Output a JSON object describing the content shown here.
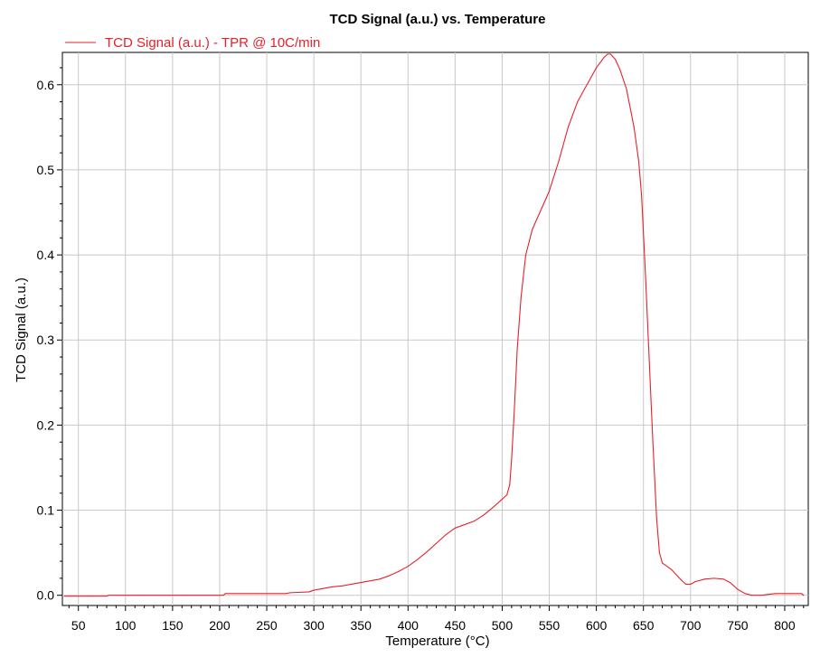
{
  "chart_data": {
    "type": "line",
    "title": "TCD Signal (a.u.) vs. Temperature",
    "xlabel": "Temperature (°C)",
    "ylabel": "TCD Signal (a.u.)",
    "xlim": [
      33,
      825
    ],
    "ylim": [
      -0.012,
      0.638
    ],
    "x_ticks": [
      50,
      100,
      150,
      200,
      250,
      300,
      350,
      400,
      450,
      500,
      550,
      600,
      650,
      700,
      750,
      800
    ],
    "y_ticks": [
      0.0,
      0.1,
      0.2,
      0.3,
      0.4,
      0.5,
      0.6
    ],
    "y_tick_labels": [
      "0.0",
      "0.1",
      "0.2",
      "0.3",
      "0.4",
      "0.5",
      "0.6"
    ],
    "grid": true,
    "legend_position": "top-left",
    "series": [
      {
        "name": "TCD Signal (a.u.) - TPR @ 10C/min",
        "color": "#e8202a",
        "points": [
          [
            35,
            -0.001
          ],
          [
            60,
            -0.001
          ],
          [
            80,
            -0.001
          ],
          [
            82,
            0.0
          ],
          [
            120,
            0.0
          ],
          [
            160,
            0.0
          ],
          [
            204,
            0.0
          ],
          [
            206,
            0.002
          ],
          [
            240,
            0.002
          ],
          [
            270,
            0.002
          ],
          [
            275,
            0.003
          ],
          [
            295,
            0.004
          ],
          [
            300,
            0.006
          ],
          [
            310,
            0.008
          ],
          [
            320,
            0.01
          ],
          [
            330,
            0.011
          ],
          [
            340,
            0.013
          ],
          [
            350,
            0.015
          ],
          [
            360,
            0.017
          ],
          [
            370,
            0.019
          ],
          [
            380,
            0.023
          ],
          [
            390,
            0.028
          ],
          [
            400,
            0.034
          ],
          [
            410,
            0.042
          ],
          [
            420,
            0.051
          ],
          [
            430,
            0.061
          ],
          [
            440,
            0.071
          ],
          [
            450,
            0.079
          ],
          [
            460,
            0.083
          ],
          [
            470,
            0.087
          ],
          [
            480,
            0.094
          ],
          [
            490,
            0.103
          ],
          [
            500,
            0.113
          ],
          [
            505,
            0.118
          ],
          [
            508,
            0.13
          ],
          [
            510,
            0.16
          ],
          [
            513,
            0.22
          ],
          [
            516,
            0.29
          ],
          [
            520,
            0.35
          ],
          [
            525,
            0.4
          ],
          [
            532,
            0.43
          ],
          [
            540,
            0.45
          ],
          [
            550,
            0.475
          ],
          [
            560,
            0.51
          ],
          [
            570,
            0.55
          ],
          [
            580,
            0.58
          ],
          [
            590,
            0.6
          ],
          [
            600,
            0.62
          ],
          [
            608,
            0.632
          ],
          [
            612,
            0.636
          ],
          [
            615,
            0.636
          ],
          [
            620,
            0.63
          ],
          [
            625,
            0.618
          ],
          [
            632,
            0.595
          ],
          [
            640,
            0.55
          ],
          [
            645,
            0.51
          ],
          [
            648,
            0.47
          ],
          [
            652,
            0.38
          ],
          [
            656,
            0.28
          ],
          [
            660,
            0.18
          ],
          [
            664,
            0.09
          ],
          [
            667,
            0.05
          ],
          [
            670,
            0.038
          ],
          [
            680,
            0.03
          ],
          [
            690,
            0.018
          ],
          [
            695,
            0.013
          ],
          [
            700,
            0.013
          ],
          [
            705,
            0.016
          ],
          [
            715,
            0.019
          ],
          [
            725,
            0.02
          ],
          [
            735,
            0.019
          ],
          [
            742,
            0.015
          ],
          [
            750,
            0.007
          ],
          [
            758,
            0.002
          ],
          [
            765,
            0.0
          ],
          [
            775,
            0.0
          ],
          [
            790,
            0.002
          ],
          [
            805,
            0.002
          ],
          [
            818,
            0.002
          ],
          [
            820,
            0.0
          ]
        ]
      }
    ]
  }
}
